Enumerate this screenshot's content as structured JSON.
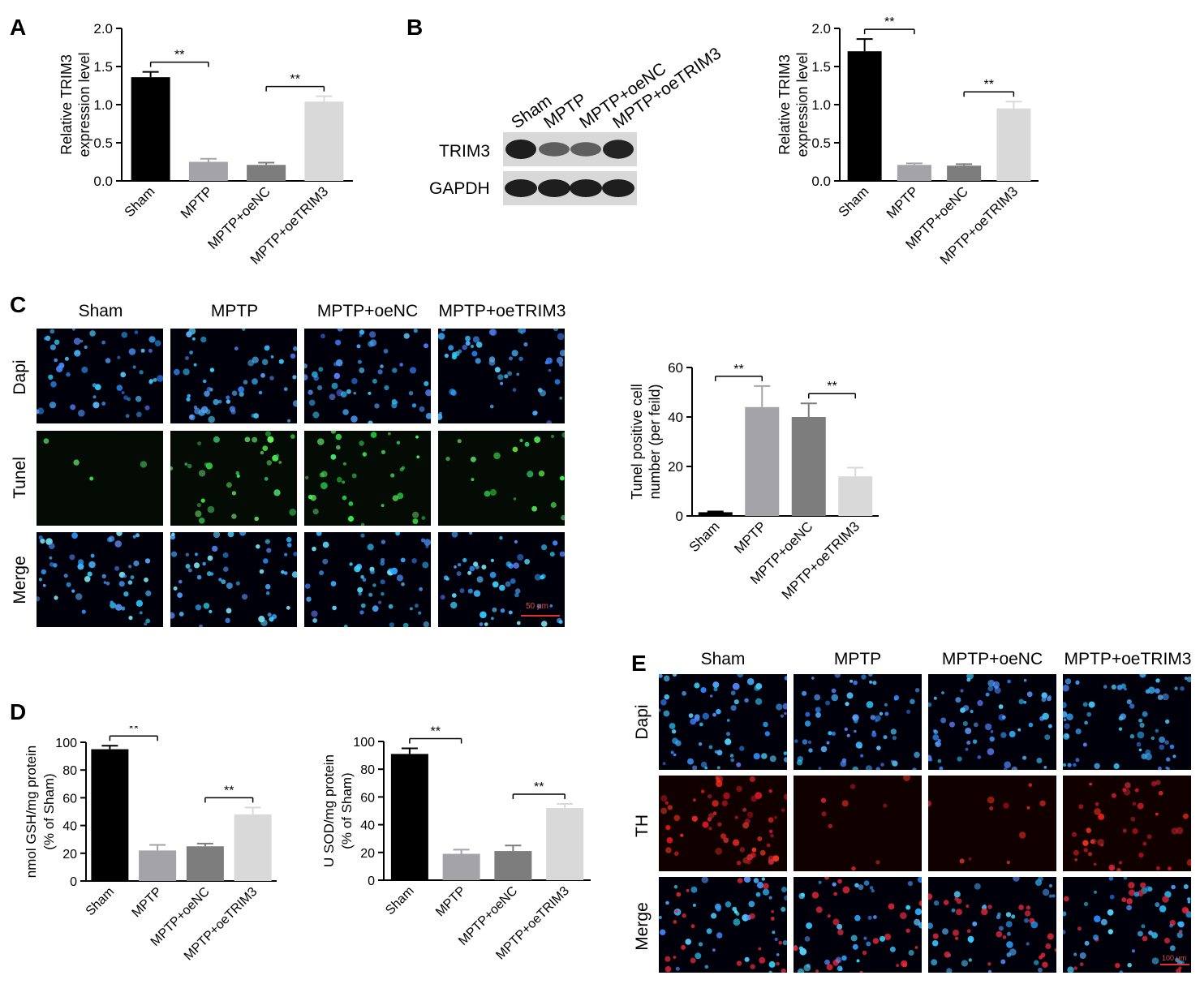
{
  "panels": {
    "A": "A",
    "B": "B",
    "C": "C",
    "D": "D",
    "E": "E"
  },
  "groups": [
    "Sham",
    "MPTP",
    "MPTP+oeNC",
    "MPTP+oeTRIM3"
  ],
  "colors": {
    "sham": "#000000",
    "mptp": "#a3a3a8",
    "oenc": "#7d7d7d",
    "oetrim3": "#d9d9d9"
  },
  "blot": {
    "bands": [
      "TRIM3",
      "GAPDH"
    ],
    "trim3_intensity": [
      1.0,
      0.45,
      0.45,
      0.95
    ],
    "gapdh_intensity": [
      1.0,
      1.0,
      1.0,
      1.0
    ]
  },
  "microscopy_C": {
    "columns": [
      "Sham",
      "MPTP",
      "MPTP+oeNC",
      "MPTP+oeTRIM3"
    ],
    "rows": [
      "Dapi",
      "Tunel",
      "Merge"
    ],
    "scale_bar": "50 μm"
  },
  "microscopy_E": {
    "columns": [
      "Sham",
      "MPTP",
      "MPTP+oeNC",
      "MPTP+oeTRIM3"
    ],
    "rows": [
      "Dapi",
      "TH",
      "Merge"
    ],
    "scale_bar": "100 μm"
  },
  "chart_data": [
    {
      "id": "A",
      "type": "bar",
      "categories": [
        "Sham",
        "MPTP",
        "MPTP+oeNC",
        "MPTP+oeTRIM3"
      ],
      "values": [
        1.36,
        0.25,
        0.21,
        1.04
      ],
      "errors": [
        0.07,
        0.04,
        0.03,
        0.07
      ],
      "ylabel": [
        "Relative TRIM3",
        "expression level"
      ],
      "ylim": [
        0,
        2.0
      ],
      "yticks": [
        "0.0",
        "0.5",
        "1.0",
        "1.5",
        "2.0"
      ],
      "significance": [
        {
          "from": 0,
          "to": 1,
          "label": "**"
        },
        {
          "from": 2,
          "to": 3,
          "label": "**"
        }
      ]
    },
    {
      "id": "B",
      "type": "bar",
      "categories": [
        "Sham",
        "MPTP",
        "MPTP+oeNC",
        "MPTP+oeTRIM3"
      ],
      "values": [
        1.7,
        0.21,
        0.2,
        0.95
      ],
      "errors": [
        0.16,
        0.02,
        0.02,
        0.09
      ],
      "ylabel": [
        "Relative TRIM3",
        "expression level"
      ],
      "ylim": [
        0,
        2.0
      ],
      "yticks": [
        "0.0",
        "0.5",
        "1.0",
        "1.5",
        "2.0"
      ],
      "significance": [
        {
          "from": 0,
          "to": 1,
          "label": "**"
        },
        {
          "from": 2,
          "to": 3,
          "label": "**"
        }
      ]
    },
    {
      "id": "C",
      "type": "bar",
      "categories": [
        "Sham",
        "MPTP",
        "MPTP+oeNC",
        "MPTP+oeTRIM3"
      ],
      "values": [
        1.5,
        44,
        40,
        16
      ],
      "errors": [
        0.3,
        8.5,
        5.5,
        3.5
      ],
      "ylabel": [
        "Tunel positive cell",
        "number (per feild)"
      ],
      "ylim": [
        0,
        60
      ],
      "yticks": [
        "0",
        "20",
        "40",
        "60"
      ],
      "significance": [
        {
          "from": 0,
          "to": 1,
          "label": "**"
        },
        {
          "from": 2,
          "to": 3,
          "label": "**"
        }
      ]
    },
    {
      "id": "D1",
      "type": "bar",
      "categories": [
        "Sham",
        "MPTP",
        "MPTP+oeNC",
        "MPTP+oeTRIM3"
      ],
      "values": [
        95,
        22,
        25,
        48
      ],
      "errors": [
        2.5,
        4,
        2,
        5
      ],
      "ylabel": [
        "nmol GSH/mg protein",
        "(% of Sham)"
      ],
      "ylim": [
        0,
        100
      ],
      "yticks": [
        "0",
        "20",
        "40",
        "60",
        "80",
        "100"
      ],
      "significance": [
        {
          "from": 0,
          "to": 1,
          "label": "**"
        },
        {
          "from": 2,
          "to": 3,
          "label": "**"
        }
      ]
    },
    {
      "id": "D2",
      "type": "bar",
      "categories": [
        "Sham",
        "MPTP",
        "MPTP+oeNC",
        "MPTP+oeTRIM3"
      ],
      "values": [
        91,
        19,
        21,
        52
      ],
      "errors": [
        4,
        3,
        4,
        3
      ],
      "ylabel": [
        "U SOD/mg protein",
        "(% of Sham)"
      ],
      "ylim": [
        0,
        100
      ],
      "yticks": [
        "0",
        "20",
        "40",
        "60",
        "80",
        "100"
      ],
      "significance": [
        {
          "from": 0,
          "to": 1,
          "label": "**"
        },
        {
          "from": 2,
          "to": 3,
          "label": "**"
        }
      ]
    }
  ]
}
